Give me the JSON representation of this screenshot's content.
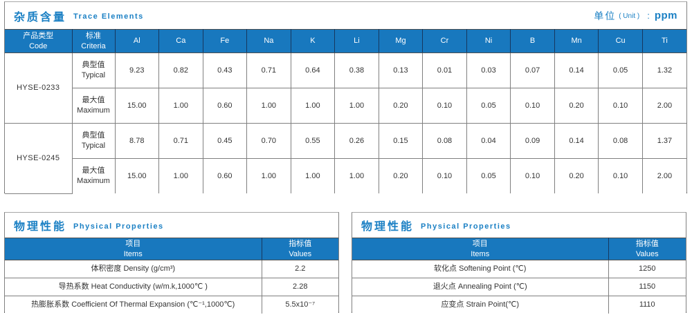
{
  "colors": {
    "header_blue": "#1878be",
    "title_blue": "#1b80c4",
    "header_divider_navy": "#17375e",
    "grid_gray": "#7f7f7f",
    "text_dark": "#333333"
  },
  "trace_table": {
    "title_zh": "杂质含量",
    "title_en": "Trace Elements",
    "unit": {
      "zh": "单位",
      "paren": "( Unit )",
      "colon": ":",
      "value": "ppm"
    },
    "col_code_zh": "产品类型",
    "col_code_en": "Code",
    "col_criteria_zh": "标准",
    "col_criteria_en": "Criteria",
    "elements": [
      "Al",
      "Ca",
      "Fe",
      "Na",
      "K",
      "Li",
      "Mg",
      "Cr",
      "Ni",
      "B",
      "Mn",
      "Cu",
      "Ti"
    ],
    "products": [
      {
        "code": "HYSE-0233",
        "rows": [
          {
            "criteria_zh": "典型值",
            "criteria_en": "Typical",
            "values": [
              "9.23",
              "0.82",
              "0.43",
              "0.71",
              "0.64",
              "0.38",
              "0.13",
              "0.01",
              "0.03",
              "0.07",
              "0.14",
              "0.05",
              "1.32"
            ]
          },
          {
            "criteria_zh": "最大值",
            "criteria_en": "Maximum",
            "values": [
              "15.00",
              "1.00",
              "0.60",
              "1.00",
              "1.00",
              "1.00",
              "0.20",
              "0.10",
              "0.05",
              "0.10",
              "0.20",
              "0.10",
              "2.00"
            ]
          }
        ]
      },
      {
        "code": "HYSE-0245",
        "rows": [
          {
            "criteria_zh": "典型值",
            "criteria_en": "Typical",
            "values": [
              "8.78",
              "0.71",
              "0.45",
              "0.70",
              "0.55",
              "0.26",
              "0.15",
              "0.08",
              "0.04",
              "0.09",
              "0.14",
              "0.08",
              "1.37"
            ]
          },
          {
            "criteria_zh": "最大值",
            "criteria_en": "Maximum",
            "values": [
              "15.00",
              "1.00",
              "0.60",
              "1.00",
              "1.00",
              "1.00",
              "0.20",
              "0.10",
              "0.05",
              "0.10",
              "0.20",
              "0.10",
              "2.00"
            ]
          }
        ]
      }
    ]
  },
  "physical_left": {
    "title_zh": "物理性能",
    "title_en": "Physical Properties",
    "header": {
      "items_zh": "项目",
      "items_en": "Items",
      "values_zh": "指标值",
      "values_en": "Values"
    },
    "rows": [
      {
        "item": "体积密度 Density (g/cm³)",
        "value": "2.2"
      },
      {
        "item": "导热系数 Heat Conductivity (w/m.k,1000℃ )",
        "value": "2.28"
      },
      {
        "item": "热膨胀系数 Coefficient Of Thermal Expansion (℃⁻¹,1000℃)",
        "value": "5.5x10⁻⁷"
      }
    ]
  },
  "physical_right": {
    "title_zh": "物理性能",
    "title_en": "Physical Properties",
    "header": {
      "items_zh": "项目",
      "items_en": "Items",
      "values_zh": "指标值",
      "values_en": "Values"
    },
    "rows": [
      {
        "item": "软化点 Softening Point (℃)",
        "value": "1250"
      },
      {
        "item": "退火点 Annealing Point (℃)",
        "value": "1150"
      },
      {
        "item": "应变点 Strain Point(℃)",
        "value": "1110"
      }
    ]
  }
}
